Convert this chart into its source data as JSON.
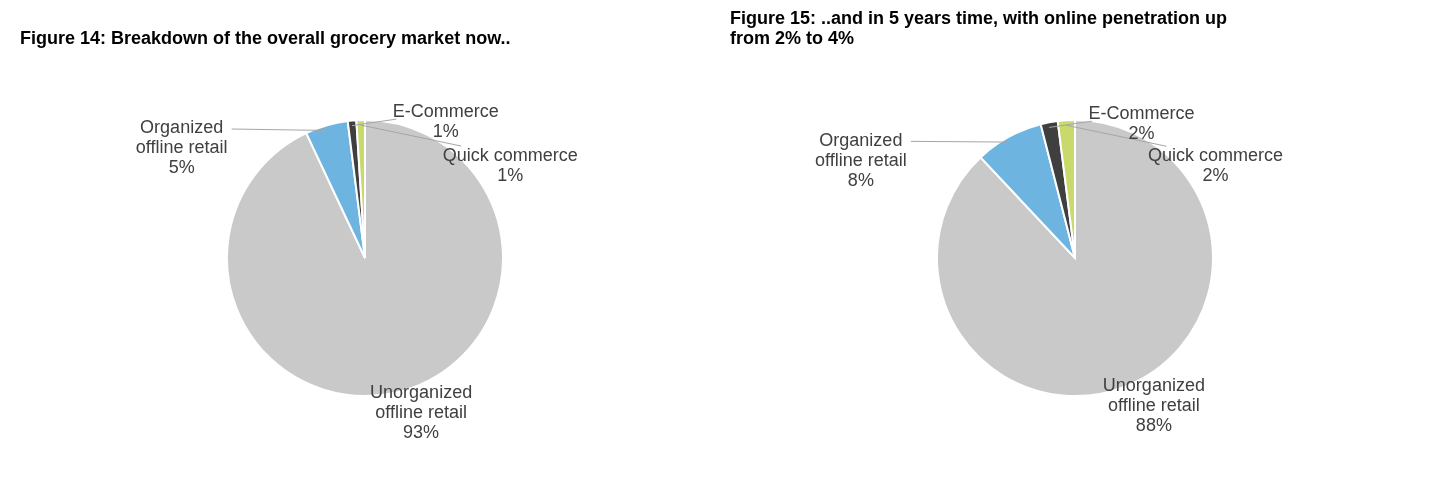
{
  "chart_data": [
    {
      "type": "pie",
      "title": "Figure 14: Breakdown of the overall grocery market now..",
      "categories": [
        "Unorganized offline retail",
        "Organized offline retail",
        "E-Commerce",
        "Quick commerce"
      ],
      "values": [
        93,
        5,
        1,
        1
      ],
      "value_labels": [
        "93%",
        "5%",
        "1%",
        "1%"
      ],
      "colors": [
        "#c9c9c9",
        "#6db5e0",
        "#3f3f3f",
        "#c9d96b"
      ],
      "legend": false
    },
    {
      "type": "pie",
      "title": "Figure 15: ..and in 5 years time, with online penetration up from 2% to 4%",
      "categories": [
        "Unorganized offline retail",
        "Organized offline retail",
        "E-Commerce",
        "Quick commerce"
      ],
      "values": [
        88,
        8,
        2,
        2
      ],
      "value_labels": [
        "88%",
        "8%",
        "2%",
        "2%"
      ],
      "colors": [
        "#c9c9c9",
        "#6db5e0",
        "#3f3f3f",
        "#c9d96b"
      ],
      "legend": false
    }
  ]
}
